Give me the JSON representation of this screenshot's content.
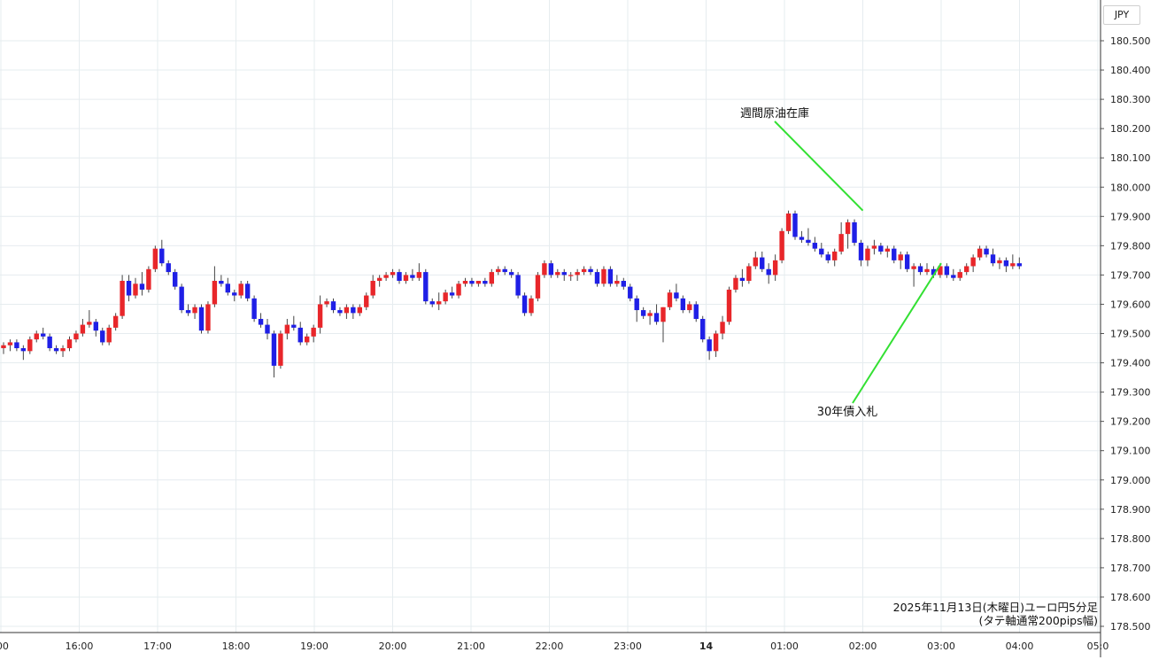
{
  "currency_label": "JPY",
  "caption": {
    "line1": "2025年11月13日(木曜日)ユーロ円5分足",
    "line2": "(タテ軸通常200pips幅)"
  },
  "annotations": [
    {
      "label": "週間原油在庫",
      "time": "02:00",
      "value": 179.92
    },
    {
      "label": "30年債入札",
      "time": "03:00",
      "value": 179.74
    }
  ],
  "chart_data": {
    "type": "candlestick",
    "ylim": [
      178.5,
      180.55
    ],
    "y_ticks": [
      "180.500",
      "180.400",
      "180.300",
      "180.200",
      "180.100",
      "180.000",
      "179.900",
      "179.800",
      "179.700",
      "179.600",
      "179.500",
      "179.400",
      "179.300",
      "179.200",
      "179.100",
      "179.000",
      "178.900",
      "178.800",
      "178.700",
      "178.600",
      "178.500"
    ],
    "x_ticks": [
      ":00",
      "16:00",
      "17:00",
      "18:00",
      "19:00",
      "20:00",
      "21:00",
      "22:00",
      "23:00",
      "14",
      "01:00",
      "02:00",
      "03:00",
      "04:00",
      "05:0"
    ],
    "colors": {
      "up": "#e8262a",
      "down": "#1f1fe6"
    },
    "ohlc": [
      [
        179.45,
        179.47,
        179.43,
        179.46
      ],
      [
        179.46,
        179.48,
        179.44,
        179.47
      ],
      [
        179.47,
        179.48,
        179.44,
        179.45
      ],
      [
        179.45,
        179.46,
        179.41,
        179.44
      ],
      [
        179.44,
        179.49,
        179.43,
        179.48
      ],
      [
        179.48,
        179.51,
        179.47,
        179.5
      ],
      [
        179.5,
        179.52,
        179.48,
        179.49
      ],
      [
        179.49,
        179.5,
        179.44,
        179.45
      ],
      [
        179.45,
        179.46,
        179.43,
        179.44
      ],
      [
        179.44,
        179.46,
        179.42,
        179.45
      ],
      [
        179.45,
        179.49,
        179.44,
        179.48
      ],
      [
        179.48,
        179.51,
        179.47,
        179.5
      ],
      [
        179.5,
        179.55,
        179.49,
        179.53
      ],
      [
        179.53,
        179.58,
        179.52,
        179.54
      ],
      [
        179.54,
        179.55,
        179.49,
        179.51
      ],
      [
        179.51,
        179.52,
        179.46,
        179.47
      ],
      [
        179.47,
        179.53,
        179.46,
        179.52
      ],
      [
        179.52,
        179.57,
        179.51,
        179.56
      ],
      [
        179.56,
        179.7,
        179.55,
        179.68
      ],
      [
        179.68,
        179.7,
        179.61,
        179.63
      ],
      [
        179.63,
        179.69,
        179.62,
        179.67
      ],
      [
        179.67,
        179.71,
        179.63,
        179.65
      ],
      [
        179.65,
        179.73,
        179.64,
        179.72
      ],
      [
        179.72,
        179.8,
        179.71,
        179.79
      ],
      [
        179.79,
        179.82,
        179.73,
        179.74
      ],
      [
        179.74,
        179.75,
        179.7,
        179.71
      ],
      [
        179.71,
        179.72,
        179.65,
        179.66
      ],
      [
        179.66,
        179.67,
        179.57,
        179.58
      ],
      [
        179.58,
        179.6,
        179.56,
        179.57
      ],
      [
        179.57,
        179.6,
        179.55,
        179.59
      ],
      [
        179.59,
        179.6,
        179.5,
        179.51
      ],
      [
        179.51,
        179.61,
        179.5,
        179.6
      ],
      [
        179.6,
        179.73,
        179.59,
        179.68
      ],
      [
        179.68,
        179.7,
        179.66,
        179.67
      ],
      [
        179.67,
        179.69,
        179.63,
        179.64
      ],
      [
        179.64,
        179.65,
        179.61,
        179.63
      ],
      [
        179.63,
        179.68,
        179.62,
        179.67
      ],
      [
        179.67,
        179.68,
        179.61,
        179.62
      ],
      [
        179.62,
        179.63,
        179.54,
        179.55
      ],
      [
        179.55,
        179.57,
        179.52,
        179.53
      ],
      [
        179.53,
        179.55,
        179.48,
        179.5
      ],
      [
        179.5,
        179.51,
        179.35,
        179.39
      ],
      [
        179.39,
        179.51,
        179.38,
        179.5
      ],
      [
        179.5,
        179.55,
        179.48,
        179.53
      ],
      [
        179.53,
        179.56,
        179.51,
        179.52
      ],
      [
        179.52,
        179.54,
        179.46,
        179.47
      ],
      [
        179.47,
        179.5,
        179.46,
        179.49
      ],
      [
        179.49,
        179.53,
        179.47,
        179.52
      ],
      [
        179.52,
        179.63,
        179.5,
        179.6
      ],
      [
        179.6,
        179.62,
        179.59,
        179.61
      ],
      [
        179.61,
        179.62,
        179.57,
        179.58
      ],
      [
        179.58,
        179.59,
        179.56,
        179.57
      ],
      [
        179.57,
        179.6,
        179.55,
        179.59
      ],
      [
        179.59,
        179.6,
        179.55,
        179.57
      ],
      [
        179.57,
        179.6,
        179.56,
        179.59
      ],
      [
        179.59,
        179.64,
        179.58,
        179.63
      ],
      [
        179.63,
        179.7,
        179.62,
        179.68
      ],
      [
        179.68,
        179.7,
        179.66,
        179.69
      ],
      [
        179.69,
        179.71,
        179.68,
        179.7
      ],
      [
        179.7,
        179.72,
        179.69,
        179.71
      ],
      [
        179.71,
        179.72,
        179.67,
        179.68
      ],
      [
        179.68,
        179.71,
        179.67,
        179.7
      ],
      [
        179.7,
        179.72,
        179.68,
        179.69
      ],
      [
        179.69,
        179.74,
        179.68,
        179.71
      ],
      [
        179.71,
        179.72,
        179.6,
        179.61
      ],
      [
        179.61,
        179.62,
        179.59,
        179.6
      ],
      [
        179.6,
        179.64,
        179.58,
        179.61
      ],
      [
        179.61,
        179.65,
        179.6,
        179.64
      ],
      [
        179.64,
        179.66,
        179.62,
        179.63
      ],
      [
        179.63,
        179.68,
        179.62,
        179.67
      ],
      [
        179.67,
        179.69,
        179.66,
        179.68
      ],
      [
        179.68,
        179.69,
        179.66,
        179.67
      ],
      [
        179.67,
        179.68,
        179.66,
        179.68
      ],
      [
        179.68,
        179.69,
        179.66,
        179.67
      ],
      [
        179.67,
        179.72,
        179.66,
        179.71
      ],
      [
        179.71,
        179.73,
        179.7,
        179.72
      ],
      [
        179.72,
        179.73,
        179.7,
        179.71
      ],
      [
        179.71,
        179.72,
        179.69,
        179.7
      ],
      [
        179.7,
        179.71,
        179.62,
        179.63
      ],
      [
        179.63,
        179.64,
        179.56,
        179.57
      ],
      [
        179.57,
        179.63,
        179.56,
        179.62
      ],
      [
        179.62,
        179.71,
        179.61,
        179.7
      ],
      [
        179.7,
        179.75,
        179.69,
        179.74
      ],
      [
        179.74,
        179.75,
        179.69,
        179.7
      ],
      [
        179.7,
        179.72,
        179.69,
        179.71
      ],
      [
        179.71,
        179.72,
        179.68,
        179.7
      ],
      [
        179.7,
        179.71,
        179.68,
        179.7
      ],
      [
        179.7,
        179.72,
        179.68,
        179.71
      ],
      [
        179.71,
        179.73,
        179.7,
        179.72
      ],
      [
        179.72,
        179.73,
        179.7,
        179.71
      ],
      [
        179.71,
        179.72,
        179.66,
        179.67
      ],
      [
        179.67,
        179.73,
        179.66,
        179.72
      ],
      [
        179.72,
        179.73,
        179.66,
        179.67
      ],
      [
        179.67,
        179.7,
        179.66,
        179.68
      ],
      [
        179.68,
        179.69,
        179.65,
        179.66
      ],
      [
        179.66,
        179.67,
        179.61,
        179.62
      ],
      [
        179.62,
        179.63,
        179.54,
        179.58
      ],
      [
        179.58,
        179.59,
        179.55,
        179.56
      ],
      [
        179.56,
        179.58,
        179.53,
        179.57
      ],
      [
        179.57,
        179.6,
        179.53,
        179.54
      ],
      [
        179.54,
        179.59,
        179.47,
        179.59
      ],
      [
        179.59,
        179.65,
        179.58,
        179.64
      ],
      [
        179.64,
        179.67,
        179.61,
        179.62
      ],
      [
        179.62,
        179.63,
        179.57,
        179.58
      ],
      [
        179.58,
        179.61,
        179.57,
        179.6
      ],
      [
        179.6,
        179.61,
        179.54,
        179.55
      ],
      [
        179.55,
        179.56,
        179.47,
        179.48
      ],
      [
        179.48,
        179.49,
        179.41,
        179.44
      ],
      [
        179.44,
        179.51,
        179.42,
        179.5
      ],
      [
        179.5,
        179.56,
        179.48,
        179.54
      ],
      [
        179.54,
        179.66,
        179.53,
        179.65
      ],
      [
        179.65,
        179.7,
        179.64,
        179.69
      ],
      [
        179.69,
        179.72,
        179.66,
        179.68
      ],
      [
        179.68,
        179.74,
        179.67,
        179.73
      ],
      [
        179.73,
        179.78,
        179.72,
        179.76
      ],
      [
        179.76,
        179.78,
        179.71,
        179.72
      ],
      [
        179.72,
        179.74,
        179.67,
        179.7
      ],
      [
        179.7,
        179.77,
        179.68,
        179.75
      ],
      [
        179.75,
        179.86,
        179.74,
        179.85
      ],
      [
        179.85,
        179.92,
        179.84,
        179.91
      ],
      [
        179.91,
        179.92,
        179.82,
        179.83
      ],
      [
        179.83,
        179.85,
        179.81,
        179.82
      ],
      [
        179.82,
        179.86,
        179.8,
        179.81
      ],
      [
        179.81,
        179.83,
        179.78,
        179.79
      ],
      [
        179.79,
        179.81,
        179.76,
        179.77
      ],
      [
        179.77,
        179.78,
        179.74,
        179.75
      ],
      [
        179.75,
        179.79,
        179.73,
        179.78
      ],
      [
        179.78,
        179.88,
        179.77,
        179.84
      ],
      [
        179.84,
        179.89,
        179.79,
        179.88
      ],
      [
        179.88,
        179.89,
        179.8,
        179.81
      ],
      [
        179.81,
        179.82,
        179.73,
        179.75
      ],
      [
        179.75,
        179.8,
        179.73,
        179.79
      ],
      [
        179.79,
        179.82,
        179.77,
        179.8
      ],
      [
        179.8,
        179.81,
        179.77,
        179.78
      ],
      [
        179.78,
        179.8,
        179.76,
        179.79
      ],
      [
        179.79,
        179.8,
        179.74,
        179.75
      ],
      [
        179.75,
        179.78,
        179.72,
        179.77
      ],
      [
        179.77,
        179.78,
        179.71,
        179.72
      ],
      [
        179.72,
        179.74,
        179.66,
        179.73
      ],
      [
        179.73,
        179.74,
        179.7,
        179.71
      ],
      [
        179.71,
        179.74,
        179.7,
        179.72
      ],
      [
        179.72,
        179.73,
        179.69,
        179.7
      ],
      [
        179.7,
        179.74,
        179.69,
        179.73
      ],
      [
        179.73,
        179.74,
        179.69,
        179.7
      ],
      [
        179.7,
        179.72,
        179.68,
        179.69
      ],
      [
        179.69,
        179.72,
        179.68,
        179.71
      ],
      [
        179.71,
        179.74,
        179.7,
        179.73
      ],
      [
        179.73,
        179.77,
        179.71,
        179.76
      ],
      [
        179.76,
        179.8,
        179.75,
        179.79
      ],
      [
        179.79,
        179.8,
        179.76,
        179.77
      ],
      [
        179.77,
        179.79,
        179.73,
        179.74
      ],
      [
        179.74,
        179.76,
        179.72,
        179.75
      ],
      [
        179.75,
        179.76,
        179.71,
        179.73
      ],
      [
        179.73,
        179.77,
        179.72,
        179.74
      ],
      [
        179.74,
        179.76,
        179.72,
        179.73
      ]
    ]
  }
}
